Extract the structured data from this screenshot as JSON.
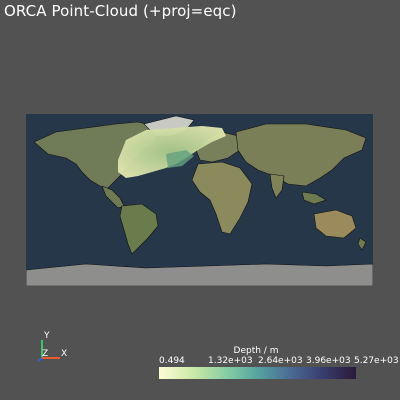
{
  "title": "ORCA Point-Cloud (+proj=eqc)",
  "axes": {
    "y_label": "Y",
    "z_label": "Z",
    "x_label": "X"
  },
  "colorbar": {
    "title": "Depth / m",
    "ticks": [
      "0.494",
      "1.32e+03",
      "2.64e+03",
      "3.96e+03",
      "5.27e+03"
    ]
  },
  "colors": {
    "background": "#525252",
    "ocean": "#27374a",
    "land": "#6f7a57",
    "points": "#cfd89a"
  }
}
